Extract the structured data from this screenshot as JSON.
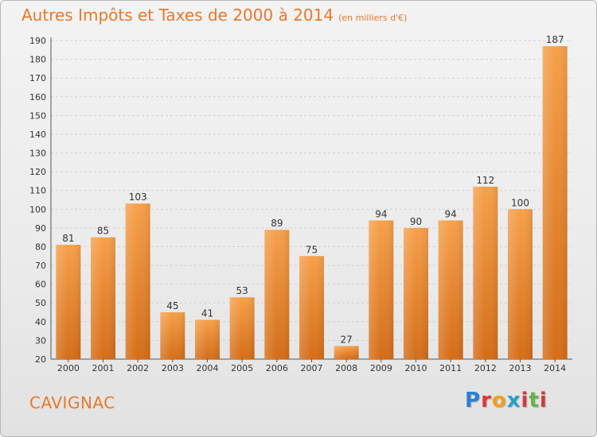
{
  "title": "Autres Impôts et Taxes de 2000 à 2014",
  "subtitle": "(en milliers d'€)",
  "town": "CAVIGNAC",
  "logo": {
    "letters": [
      "P",
      "r",
      "o",
      "x",
      "i",
      "t",
      "i"
    ],
    "colors": [
      "#2a7fd4",
      "#d63a3a",
      "#f0a020",
      "#2aa0c8",
      "#d63a3a",
      "#6ab04c",
      "#d63a3a"
    ]
  },
  "colors": {
    "bar_top": "#f6a04a",
    "bar_bottom": "#d46d18",
    "title": "#e8782a"
  },
  "chart_data": {
    "type": "bar",
    "categories": [
      "2000",
      "2001",
      "2002",
      "2003",
      "2004",
      "2005",
      "2006",
      "2007",
      "2008",
      "2009",
      "2010",
      "2011",
      "2012",
      "2013",
      "2014"
    ],
    "values": [
      81,
      85,
      103,
      45,
      41,
      53,
      89,
      75,
      27,
      94,
      90,
      94,
      112,
      100,
      187
    ],
    "ylim": [
      20,
      190
    ],
    "yticks": [
      20,
      30,
      40,
      50,
      60,
      70,
      80,
      90,
      100,
      110,
      120,
      130,
      140,
      150,
      160,
      170,
      180,
      190
    ],
    "grid": true
  }
}
